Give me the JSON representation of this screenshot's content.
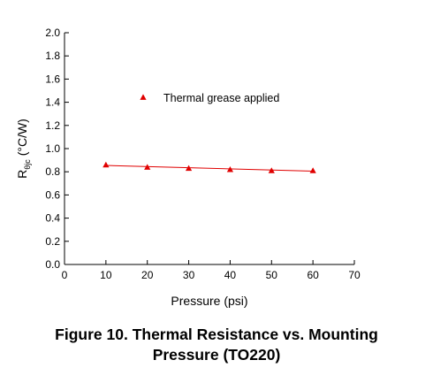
{
  "chart_data": {
    "type": "scatter",
    "xlabel": "Pressure (psi)",
    "ylabel_main": "R",
    "ylabel_sub": "θjc",
    "ylabel_unit": " (°C/W)",
    "xlim": [
      0,
      70
    ],
    "ylim": [
      0.0,
      2.0
    ],
    "xticks": [
      "0",
      "10",
      "20",
      "30",
      "40",
      "50",
      "60",
      "70"
    ],
    "yticks": [
      "0.0",
      "0.2",
      "0.4",
      "0.6",
      "0.8",
      "1.0",
      "1.2",
      "1.4",
      "1.6",
      "1.8",
      "2.0"
    ],
    "legend_position": "top-center",
    "marker_color": "#e00000",
    "line_color": "#e00000",
    "series": [
      {
        "name": "Thermal grease applied",
        "x": [
          10,
          20,
          30,
          40,
          50,
          60
        ],
        "y": [
          0.86,
          0.84,
          0.83,
          0.82,
          0.81,
          0.81
        ]
      }
    ],
    "trendline": {
      "x": [
        10,
        60
      ],
      "y": [
        0.855,
        0.805
      ]
    }
  },
  "caption": {
    "line1": "Figure 10. Thermal Resistance vs. Mounting",
    "line2": "Pressure (TO220)"
  }
}
